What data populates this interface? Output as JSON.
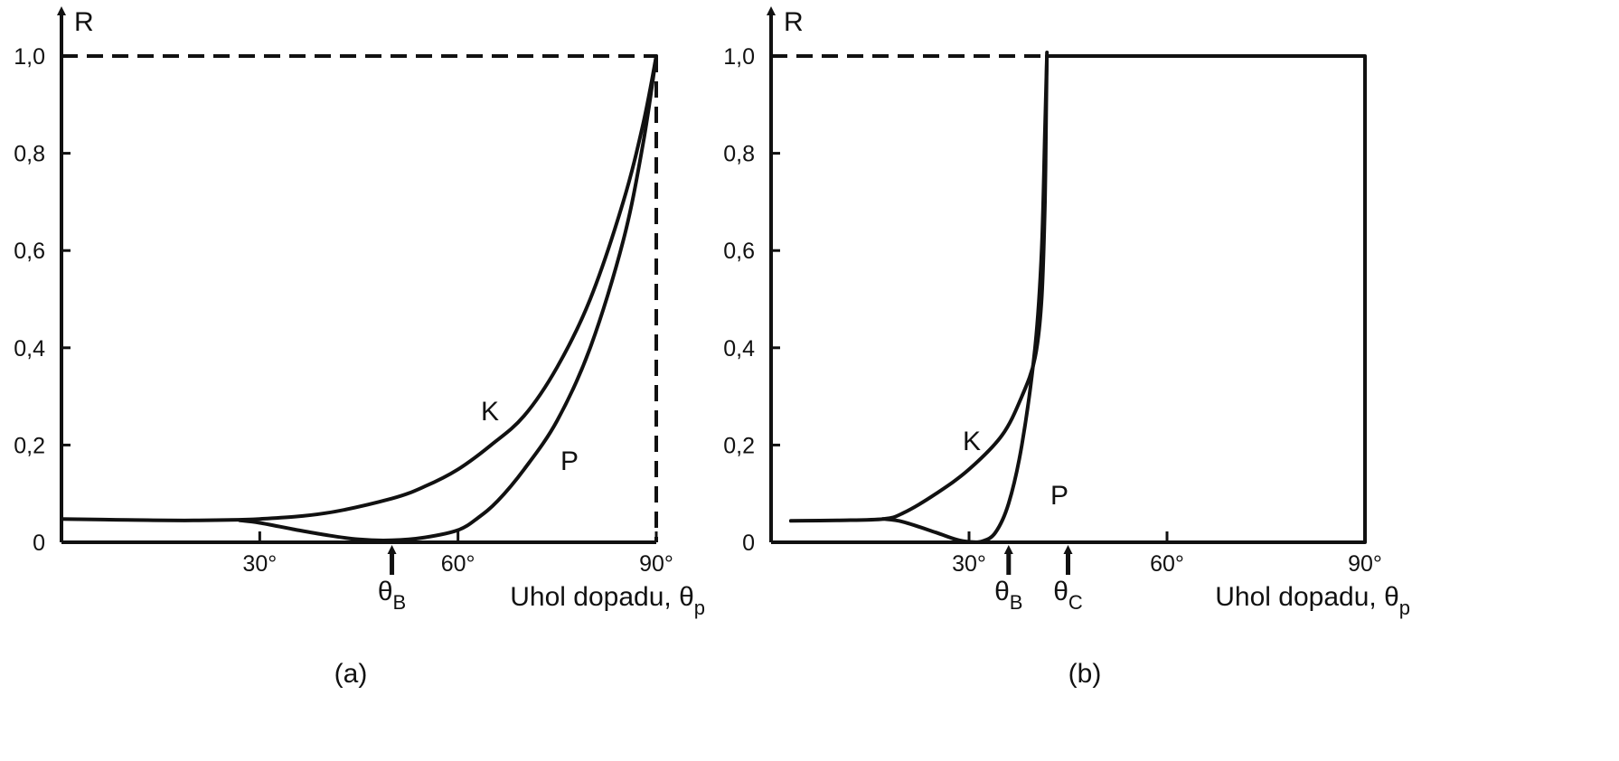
{
  "chart_data": [
    {
      "panel": "a",
      "type": "line",
      "caption": "(a)",
      "ylabel": "R",
      "xlabel": "Uhol dopadu, θp",
      "xlabel_text": "Uhol dopadu, ",
      "xlabel_symbol": "θ",
      "xlabel_sub": "p",
      "xlim": [
        0,
        90
      ],
      "ylim": [
        0,
        1.0
      ],
      "xticks": [
        {
          "value": 30,
          "label": "30°"
        },
        {
          "value": 60,
          "label": "60°"
        },
        {
          "value": 90,
          "label": "90°"
        }
      ],
      "yticks": [
        {
          "value": 0,
          "label": "0"
        },
        {
          "value": 0.2,
          "label": "0,2"
        },
        {
          "value": 0.4,
          "label": "0,4"
        },
        {
          "value": 0.6,
          "label": "0,6"
        },
        {
          "value": 0.8,
          "label": "0,8"
        },
        {
          "value": 1.0,
          "label": "1,0"
        }
      ],
      "reference_lines": [
        {
          "type": "horizontal",
          "y": 1.0,
          "x_from": 0,
          "x_to": 90,
          "style": "dashed"
        },
        {
          "type": "vertical",
          "x": 90,
          "y_from": 0,
          "y_to": 1.0,
          "style": "dashed"
        }
      ],
      "markers": [
        {
          "x": 50,
          "symbol": "θ",
          "sub": "B"
        }
      ],
      "series": [
        {
          "name": "K",
          "x": [
            0,
            10,
            20,
            30,
            40,
            50,
            55,
            60,
            65,
            70,
            75,
            80,
            85,
            88,
            90
          ],
          "y": [
            0.048,
            0.046,
            0.045,
            0.048,
            0.06,
            0.09,
            0.115,
            0.15,
            0.2,
            0.26,
            0.36,
            0.5,
            0.7,
            0.86,
            1.0
          ]
        },
        {
          "name": "P",
          "x": [
            27,
            30,
            35,
            40,
            45,
            50,
            55,
            60,
            63,
            66,
            70,
            75,
            80,
            85,
            88,
            90
          ],
          "y": [
            0.045,
            0.04,
            0.027,
            0.015,
            0.006,
            0.004,
            0.01,
            0.025,
            0.05,
            0.085,
            0.15,
            0.25,
            0.4,
            0.62,
            0.82,
            1.0
          ]
        }
      ]
    },
    {
      "panel": "b",
      "type": "line",
      "caption": "(b)",
      "ylabel": "R",
      "xlabel": "Uhol dopadu, θp",
      "xlabel_text": "Uhol dopadu, ",
      "xlabel_symbol": "θ",
      "xlabel_sub": "p",
      "xlim": [
        0,
        90
      ],
      "ylim": [
        0,
        1.0
      ],
      "xticks": [
        {
          "value": 30,
          "label": "30°"
        },
        {
          "value": 60,
          "label": "60°"
        },
        {
          "value": 90,
          "label": "90°"
        }
      ],
      "yticks": [
        {
          "value": 0,
          "label": "0"
        },
        {
          "value": 0.2,
          "label": "0,2"
        },
        {
          "value": 0.4,
          "label": "0,4"
        },
        {
          "value": 0.6,
          "label": "0,6"
        },
        {
          "value": 0.8,
          "label": "0,8"
        },
        {
          "value": 1.0,
          "label": "1,0"
        }
      ],
      "reference_lines": [
        {
          "type": "horizontal",
          "y": 1.0,
          "x_from": 0,
          "x_to": 42,
          "style": "dashed"
        }
      ],
      "markers": [
        {
          "x": 36,
          "symbol": "θ",
          "sub": "B"
        },
        {
          "x": 45,
          "symbol": "θ",
          "sub": "C"
        }
      ],
      "series": [
        {
          "name": "K",
          "x": [
            3,
            10,
            17,
            20,
            25,
            30,
            35,
            38,
            40,
            41,
            41.5,
            41.7,
            41.8,
            41.8
          ],
          "y": [
            0.044,
            0.045,
            0.048,
            0.06,
            0.1,
            0.15,
            0.22,
            0.3,
            0.38,
            0.5,
            0.7,
            0.9,
            1.0,
            1.0
          ]
        },
        {
          "name": "P",
          "x": [
            17,
            20,
            25,
            28,
            30,
            32,
            34,
            36,
            38,
            40,
            41,
            41.5,
            41.8
          ],
          "y": [
            0.048,
            0.042,
            0.02,
            0.006,
            0.001,
            0.002,
            0.02,
            0.08,
            0.2,
            0.4,
            0.6,
            0.85,
            1.0
          ]
        },
        {
          "name": "",
          "x": [
            41.8,
            90,
            90
          ],
          "y": [
            1.0,
            1.0,
            0
          ]
        }
      ]
    }
  ]
}
